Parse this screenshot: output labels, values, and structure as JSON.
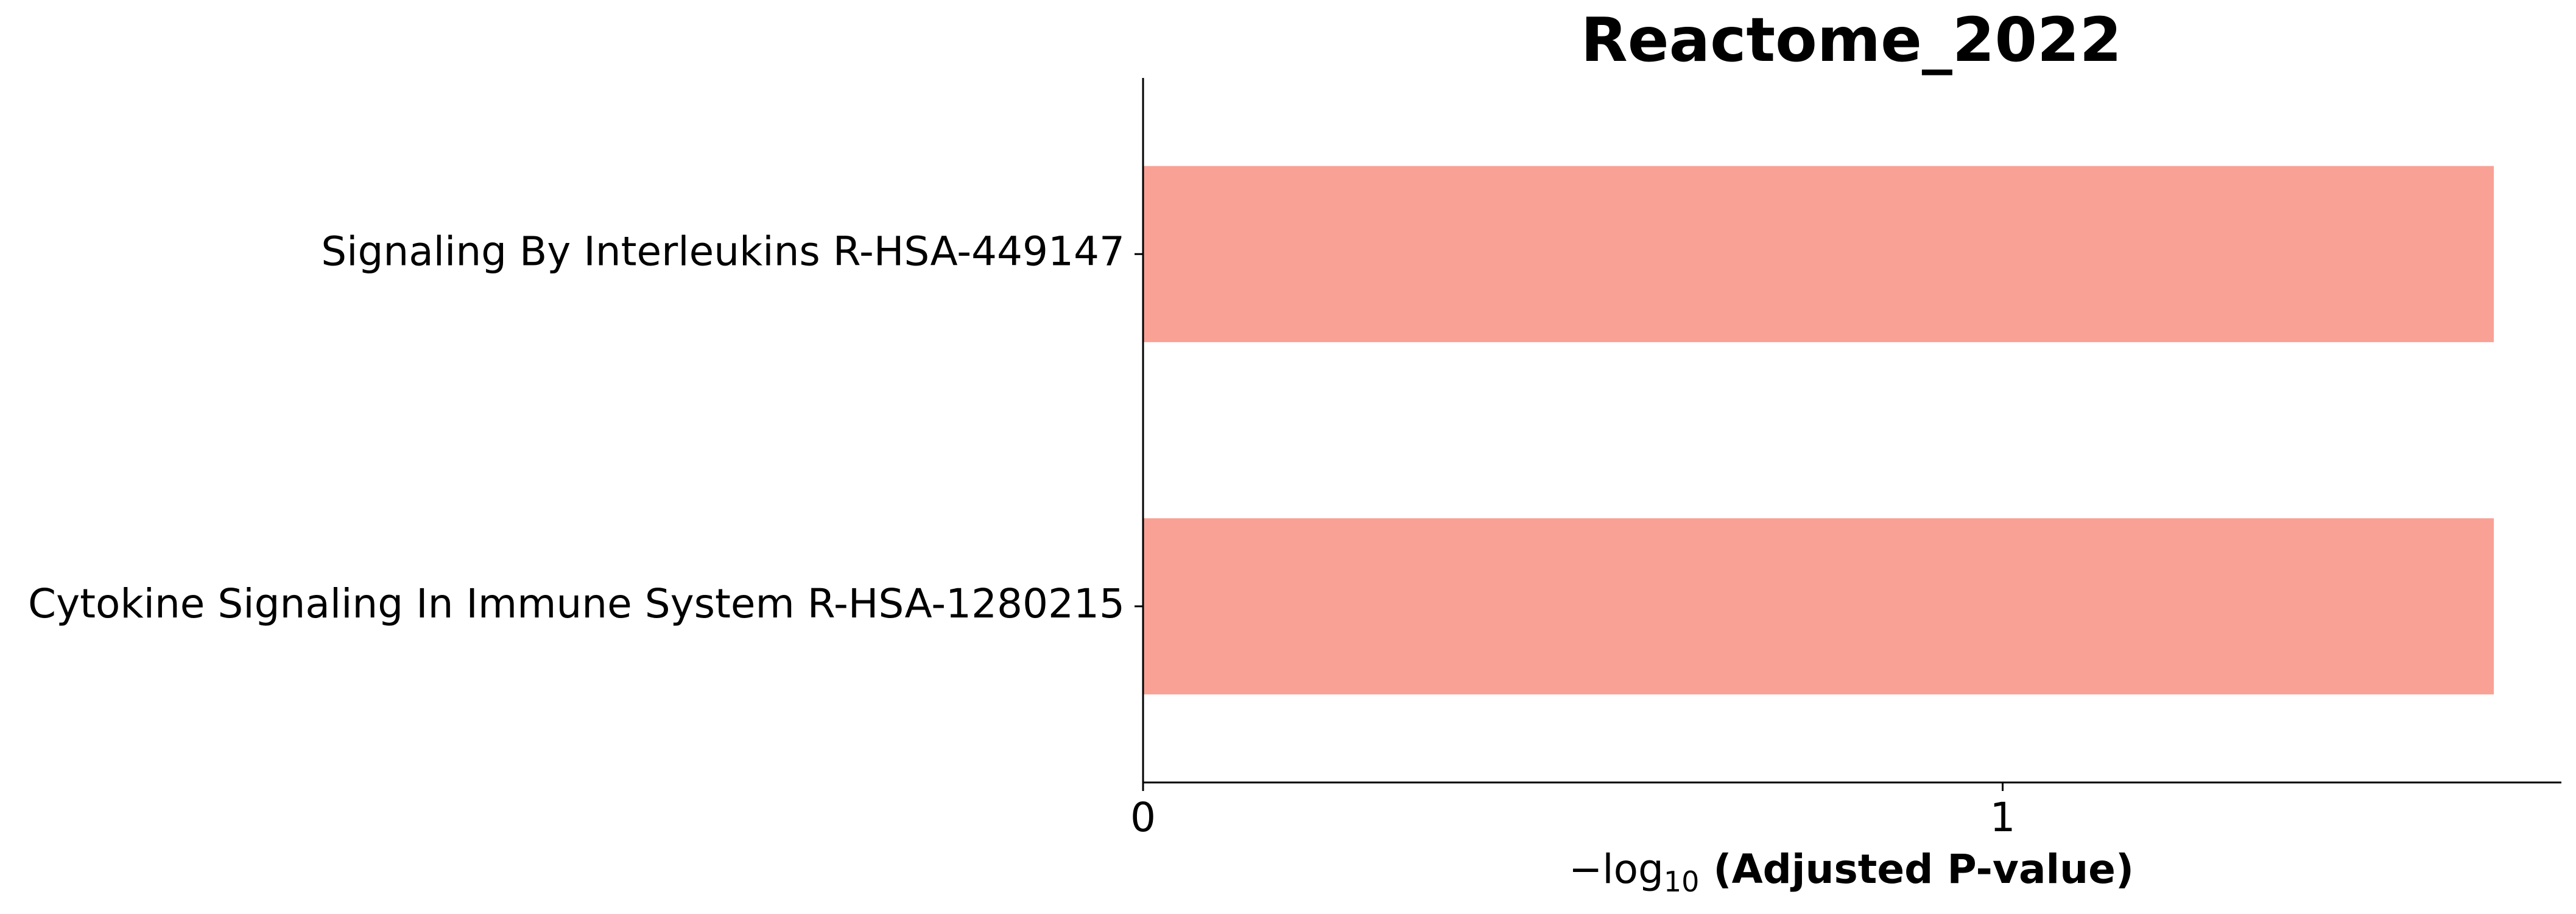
{
  "chart_data": {
    "type": "bar",
    "orientation": "horizontal",
    "title": "Reactome_2022",
    "categories": [
      "Signaling By Interleukins R-HSA-449147",
      "Cytokine Signaling In Immune System R-HSA-1280215"
    ],
    "values": [
      1.5714,
      1.5714
    ],
    "xlabel": {
      "prefix": "−log",
      "subscript": "10",
      "suffix": " (Adjusted P-value)"
    },
    "xticks": [
      {
        "value": 0,
        "label": "0"
      },
      {
        "value": 1,
        "label": "1"
      }
    ],
    "xlim": [
      0,
      1.65
    ],
    "bar_color": "#F9A195",
    "grid": false,
    "legend": "none"
  }
}
